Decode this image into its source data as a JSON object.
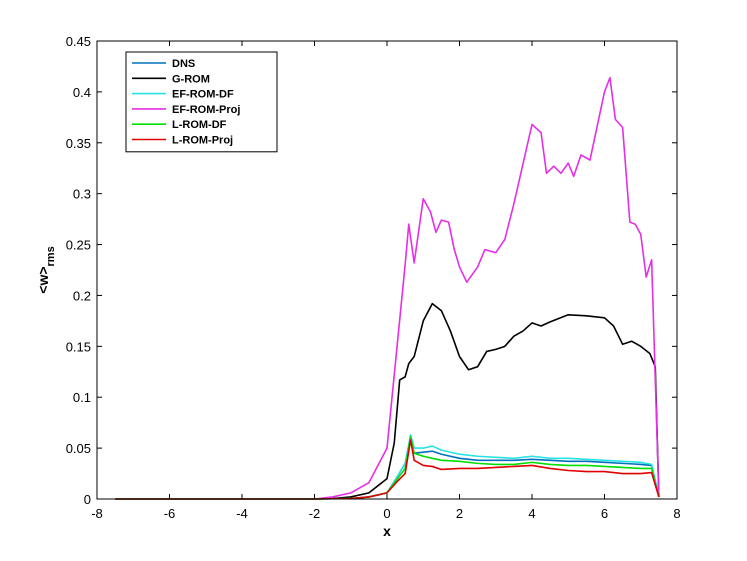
{
  "chart_data": {
    "type": "line",
    "xlabel": "x",
    "ylabel_main": "<w>",
    "ylabel_sub": "rms",
    "xlim": [
      -8,
      8
    ],
    "ylim": [
      0,
      0.45
    ],
    "xticks": [
      -8,
      -6,
      -4,
      -2,
      0,
      2,
      4,
      6,
      8
    ],
    "yticks": [
      0,
      0.05,
      0.1,
      0.15,
      0.2,
      0.25,
      0.3,
      0.35,
      0.4,
      0.45
    ],
    "xtick_labels": [
      "-8",
      "-6",
      "-4",
      "-2",
      "0",
      "2",
      "4",
      "6",
      "8"
    ],
    "ytick_labels": [
      "0",
      "0.05",
      "0.1",
      "0.15",
      "0.2",
      "0.25",
      "0.3",
      "0.35",
      "0.4",
      "0.45"
    ],
    "grid": false,
    "legend_position": "top-left",
    "series": [
      {
        "name": "DNS",
        "color": "#0072BD",
        "x": [
          -7.5,
          -2,
          -1,
          -0.5,
          0,
          0.25,
          0.5,
          0.65,
          0.75,
          1,
          1.25,
          1.5,
          2,
          2.5,
          3,
          3.5,
          4,
          4.5,
          5,
          5.5,
          6,
          6.5,
          7,
          7.3,
          7.5
        ],
        "y": [
          0,
          0,
          0.0005,
          0.002,
          0.006,
          0.02,
          0.035,
          0.058,
          0.045,
          0.046,
          0.047,
          0.044,
          0.04,
          0.038,
          0.038,
          0.038,
          0.039,
          0.038,
          0.037,
          0.037,
          0.036,
          0.035,
          0.034,
          0.033,
          0.002
        ]
      },
      {
        "name": "G-ROM",
        "color": "#000000",
        "x": [
          -7.5,
          -2,
          -1.5,
          -1,
          -0.5,
          0,
          0.2,
          0.35,
          0.5,
          0.6,
          0.75,
          1,
          1.25,
          1.5,
          1.75,
          2,
          2.25,
          2.5,
          2.75,
          3,
          3.25,
          3.5,
          3.75,
          4,
          4.25,
          4.5,
          5,
          5.5,
          6,
          6.25,
          6.5,
          6.75,
          7,
          7.25,
          7.4,
          7.5
        ],
        "y": [
          0,
          0,
          0.0005,
          0.002,
          0.006,
          0.02,
          0.055,
          0.117,
          0.12,
          0.133,
          0.14,
          0.175,
          0.192,
          0.185,
          0.165,
          0.14,
          0.127,
          0.13,
          0.145,
          0.147,
          0.15,
          0.16,
          0.165,
          0.173,
          0.17,
          0.174,
          0.181,
          0.18,
          0.178,
          0.17,
          0.152,
          0.155,
          0.15,
          0.143,
          0.13,
          0.002
        ]
      },
      {
        "name": "EF-ROM-DF",
        "color": "#27E3E3",
        "x": [
          -7.5,
          -2,
          -1,
          -0.5,
          0,
          0.25,
          0.5,
          0.65,
          0.75,
          1,
          1.25,
          1.5,
          2,
          2.5,
          3,
          3.5,
          4,
          4.5,
          5,
          5.5,
          6,
          6.5,
          7,
          7.3,
          7.5
        ],
        "y": [
          0,
          0,
          0.0005,
          0.002,
          0.006,
          0.02,
          0.035,
          0.063,
          0.05,
          0.05,
          0.052,
          0.048,
          0.044,
          0.042,
          0.041,
          0.04,
          0.042,
          0.04,
          0.04,
          0.039,
          0.038,
          0.037,
          0.036,
          0.034,
          0.002
        ]
      },
      {
        "name": "EF-ROM-Proj",
        "color": "#E62EE6",
        "x": [
          -7.5,
          -2,
          -1.5,
          -1,
          -0.5,
          0,
          0.25,
          0.5,
          0.6,
          0.75,
          1,
          1.2,
          1.35,
          1.5,
          1.7,
          1.85,
          2,
          2.2,
          2.5,
          2.7,
          3,
          3.25,
          3.5,
          4,
          4.25,
          4.4,
          4.6,
          4.8,
          5,
          5.15,
          5.35,
          5.6,
          5.85,
          6,
          6.15,
          6.3,
          6.5,
          6.7,
          6.85,
          7,
          7.15,
          7.3,
          7.5
        ],
        "y": [
          0,
          0,
          0.002,
          0.006,
          0.016,
          0.05,
          0.14,
          0.23,
          0.27,
          0.232,
          0.295,
          0.282,
          0.262,
          0.274,
          0.272,
          0.246,
          0.228,
          0.213,
          0.228,
          0.245,
          0.242,
          0.255,
          0.29,
          0.368,
          0.36,
          0.32,
          0.327,
          0.32,
          0.33,
          0.317,
          0.338,
          0.333,
          0.375,
          0.4,
          0.414,
          0.373,
          0.365,
          0.272,
          0.27,
          0.26,
          0.218,
          0.235,
          0.002
        ]
      },
      {
        "name": "L-ROM-DF",
        "color": "#00DD00",
        "x": [
          -7.5,
          -2,
          -1,
          -0.5,
          0,
          0.25,
          0.5,
          0.65,
          0.75,
          1,
          1.25,
          1.5,
          2,
          2.5,
          3,
          3.5,
          4,
          4.5,
          5,
          5.5,
          6,
          6.5,
          7,
          7.3,
          7.5
        ],
        "y": [
          0,
          0,
          0.0005,
          0.002,
          0.006,
          0.018,
          0.03,
          0.061,
          0.045,
          0.042,
          0.04,
          0.038,
          0.037,
          0.035,
          0.034,
          0.034,
          0.036,
          0.034,
          0.033,
          0.033,
          0.032,
          0.031,
          0.03,
          0.03,
          0.002
        ]
      },
      {
        "name": "L-ROM-Proj",
        "color": "#E00000",
        "x": [
          -7.5,
          -2,
          -1,
          -0.5,
          0,
          0.25,
          0.5,
          0.65,
          0.75,
          1,
          1.25,
          1.5,
          2,
          2.5,
          3,
          3.5,
          4,
          4.5,
          5,
          5.5,
          6,
          6.5,
          7,
          7.3,
          7.5
        ],
        "y": [
          0,
          0,
          0.0005,
          0.002,
          0.006,
          0.016,
          0.025,
          0.058,
          0.038,
          0.033,
          0.032,
          0.029,
          0.03,
          0.03,
          0.031,
          0.032,
          0.033,
          0.03,
          0.028,
          0.027,
          0.027,
          0.025,
          0.025,
          0.026,
          0.002
        ]
      }
    ]
  }
}
